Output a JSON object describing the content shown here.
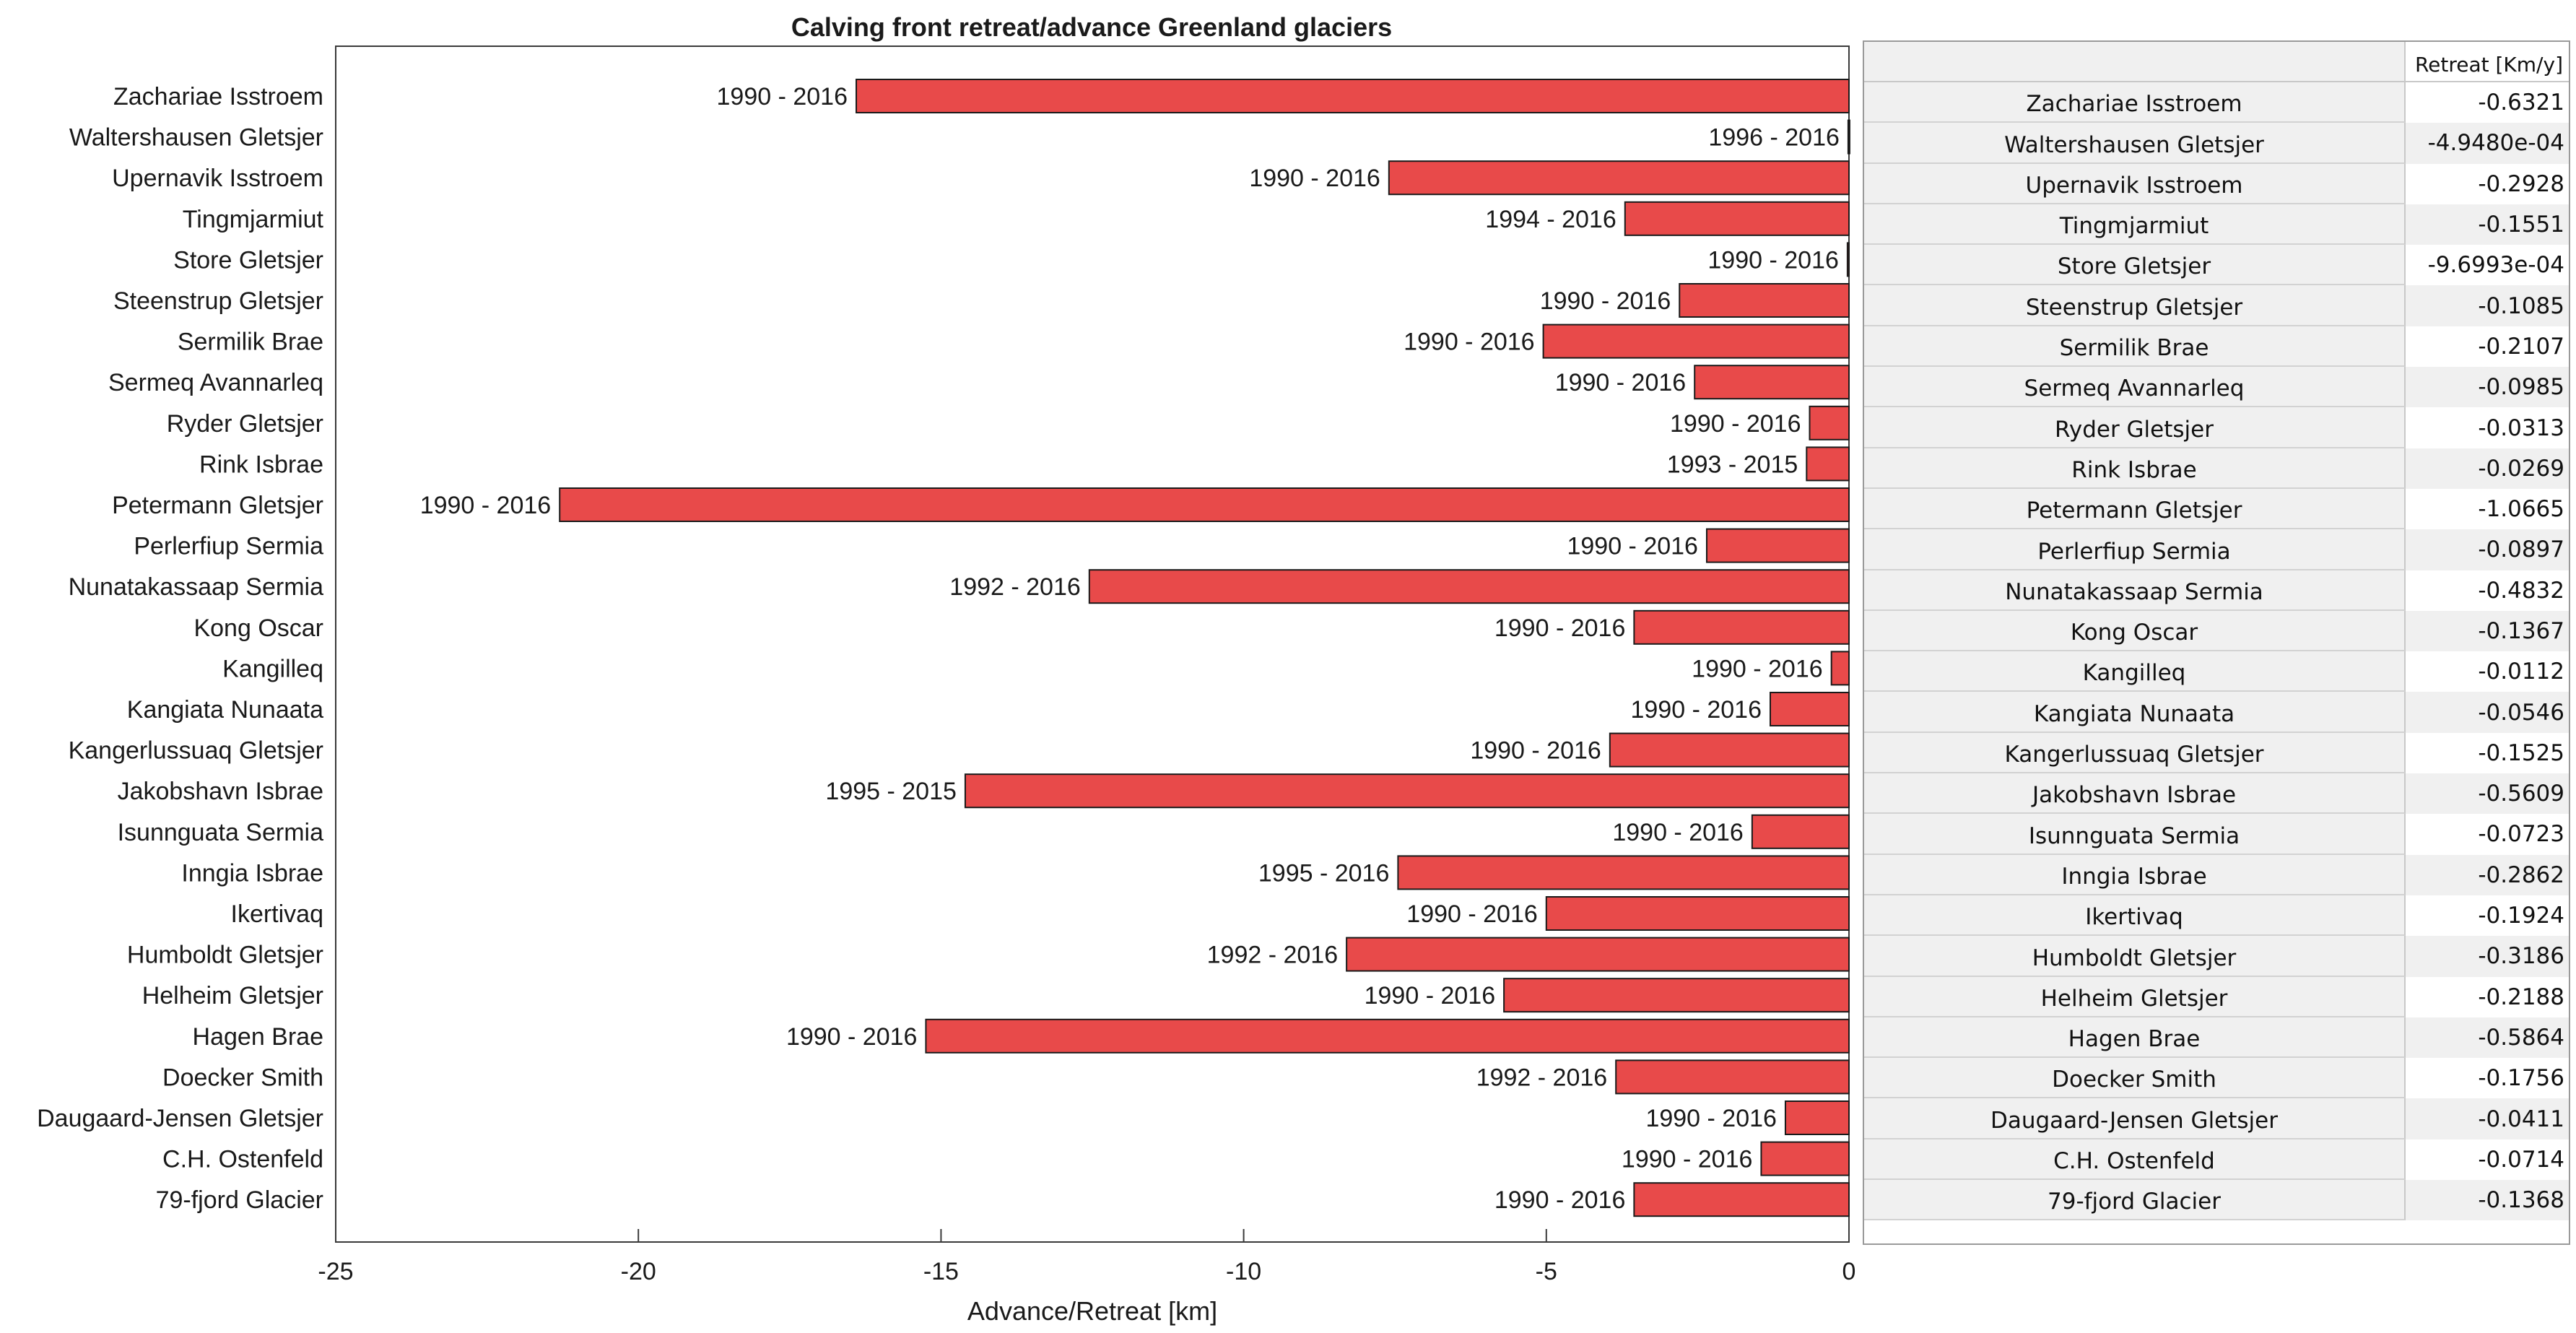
{
  "chart_data": {
    "type": "bar",
    "orientation": "horizontal",
    "title": "Calving front retreat/advance Greenland glaciers",
    "xlabel": "Advance/Retreat [km]",
    "ylabel": "",
    "xlim": [
      -25,
      0
    ],
    "xticks": [
      -25,
      -20,
      -15,
      -10,
      -5,
      0
    ],
    "grid": false,
    "bar_color": "#e84a4a",
    "categories": [
      "Zachariae Isstroem",
      "Waltershausen Gletsjer",
      "Upernavik Isstroem",
      "Tingmjarmiut ",
      "Store Gletsjer",
      "Steenstrup Gletsjer",
      "Sermilik Brae",
      "Sermeq Avannarleq",
      "Ryder Gletsjer",
      "Rink Isbrae",
      "Petermann Gletsjer",
      "Perlerfiup Sermia",
      "Nunatakassaap Sermia",
      "Kong Oscar",
      "Kangilleq ",
      "Kangiata Nunaata",
      "Kangerlussuaq Gletsjer",
      "Jakobshavn Isbrae",
      "Isunnguata Sermia",
      "Inngia Isbrae",
      "Ikertivaq ",
      "Humboldt Gletsjer",
      "Helheim Gletsjer",
      "Hagen Brae",
      "Doecker Smith",
      "Daugaard-Jensen Gletsjer",
      "C.H. Ostenfeld",
      "79-fjord Glacier"
    ],
    "values": [
      -16.4,
      -0.013,
      -7.6,
      -3.7,
      -0.025,
      -2.8,
      -5.05,
      -2.55,
      -0.65,
      -0.7,
      -21.3,
      -2.35,
      -12.55,
      -3.55,
      -0.29,
      -1.3,
      -3.95,
      -14.6,
      -1.6,
      -7.45,
      -5.0,
      -8.3,
      -5.7,
      -15.25,
      -3.85,
      -1.05,
      -1.45,
      -3.55
    ],
    "periods": [
      "1990 - 2016",
      "1996 - 2016",
      "1990 - 2016",
      "1994 - 2016",
      "1990 - 2016",
      "1990 - 2016",
      "1990 - 2016",
      "1990 - 2016",
      "1990 - 2016",
      "1993 - 2015",
      "1990 - 2016",
      "1990 - 2016",
      "1992 - 2016",
      "1990 - 2016",
      "1990 - 2016",
      "1990 - 2016",
      "1990 - 2016",
      "1995 - 2015",
      "1990 - 2016",
      "1995 - 2016",
      "1990 - 2016",
      "1992 - 2016",
      "1990 - 2016",
      "1990 - 2016",
      "1992 - 2016",
      "1990 - 2016",
      "1990 - 2016",
      "1990 - 2016"
    ]
  },
  "table": {
    "header": "Retreat [Km/y]",
    "rows": [
      {
        "name": "Zachariae Isstroem",
        "value": "-0.6321"
      },
      {
        "name": "Waltershausen Gletsjer",
        "value": "-4.9480e-04"
      },
      {
        "name": "Upernavik Isstroem",
        "value": "-0.2928"
      },
      {
        "name": "Tingmjarmiut",
        "value": "-0.1551"
      },
      {
        "name": "Store Gletsjer",
        "value": "-9.6993e-04"
      },
      {
        "name": "Steenstrup Gletsjer",
        "value": "-0.1085"
      },
      {
        "name": "Sermilik Brae",
        "value": "-0.2107"
      },
      {
        "name": "Sermeq Avannarleq",
        "value": "-0.0985"
      },
      {
        "name": "Ryder Gletsjer",
        "value": "-0.0313"
      },
      {
        "name": "Rink Isbrae",
        "value": "-0.0269"
      },
      {
        "name": "Petermann Gletsjer",
        "value": "-1.0665"
      },
      {
        "name": "Perlerfiup Sermia",
        "value": "-0.0897"
      },
      {
        "name": "Nunatakassaap Sermia",
        "value": "-0.4832"
      },
      {
        "name": "Kong Oscar",
        "value": "-0.1367"
      },
      {
        "name": "Kangilleq",
        "value": "-0.0112"
      },
      {
        "name": "Kangiata Nunaata",
        "value": "-0.0546"
      },
      {
        "name": "Kangerlussuaq Gletsjer",
        "value": "-0.1525"
      },
      {
        "name": "Jakobshavn Isbrae",
        "value": "-0.5609"
      },
      {
        "name": "Isunnguata Sermia",
        "value": "-0.0723"
      },
      {
        "name": "Inngia Isbrae",
        "value": "-0.2862"
      },
      {
        "name": "Ikertivaq",
        "value": "-0.1924"
      },
      {
        "name": "Humboldt Gletsjer",
        "value": "-0.3186"
      },
      {
        "name": "Helheim Gletsjer",
        "value": "-0.2188"
      },
      {
        "name": "Hagen Brae",
        "value": "-0.5864"
      },
      {
        "name": "Doecker Smith",
        "value": "-0.1756"
      },
      {
        "name": "Daugaard-Jensen Gletsjer",
        "value": "-0.0411"
      },
      {
        "name": "C.H. Ostenfeld",
        "value": "-0.0714"
      },
      {
        "name": "79-fjord Glacier",
        "value": "-0.1368"
      }
    ]
  }
}
